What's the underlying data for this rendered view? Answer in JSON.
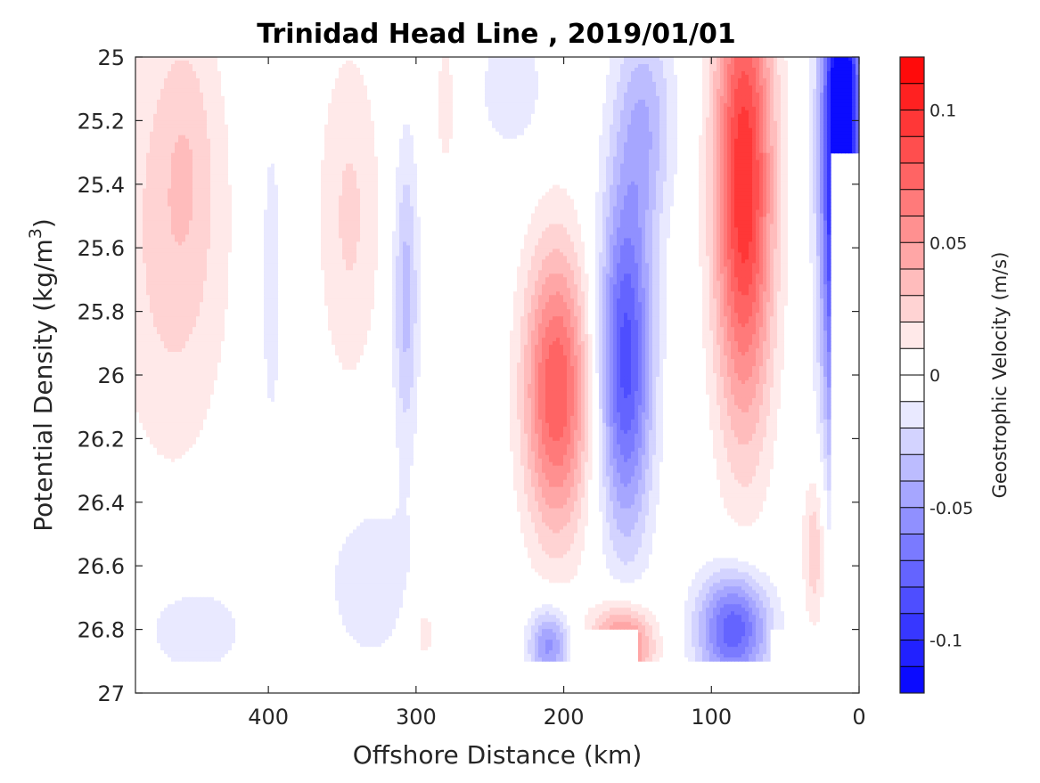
{
  "chart_data": {
    "type": "heatmap",
    "subtype": "filled-contour",
    "title": "Trinidad Head Line , 2019/01/01",
    "xlabel": "Offshore Distance (km)",
    "ylabel_main": "Potential Density (kg/m",
    "ylabel_sup": "3",
    "ylabel_close": ")",
    "xlim": [
      490,
      0
    ],
    "x_reversed": true,
    "ylim": [
      25,
      27
    ],
    "y_reversed": true,
    "x_ticks": [
      400,
      300,
      200,
      100,
      0
    ],
    "x_tick_labels": [
      "400",
      "300",
      "200",
      "100",
      "0"
    ],
    "y_ticks": [
      25,
      25.2,
      25.4,
      25.6,
      25.8,
      26,
      26.2,
      26.4,
      26.6,
      26.8,
      27
    ],
    "y_tick_labels": [
      "25",
      "25.2",
      "25.4",
      "25.6",
      "25.8",
      "26",
      "26.2",
      "26.4",
      "26.6",
      "26.8",
      "27"
    ],
    "colorbar": {
      "label": "Geostrophic Velocity (m/s)",
      "range": [
        -0.12,
        0.12
      ],
      "step": 0.01,
      "ticks": [
        0.1,
        0.05,
        0,
        -0.05,
        -0.1
      ],
      "tick_labels": [
        "0.1",
        "0.05",
        "0",
        "-0.05",
        "-0.1"
      ],
      "negative_color": "#0000ff",
      "zero_color": "#ffffff",
      "positive_color": "#ff0000"
    },
    "data_extent": {
      "x_max": 490,
      "y_max": 26.9
    },
    "masked_regions": [
      {
        "x_from": 190,
        "x_to": 150,
        "y_from": 26.8,
        "y_to": 26.9
      },
      {
        "x_from": 60,
        "x_to": 0,
        "y_from": 26.8,
        "y_to": 26.9
      },
      {
        "x_from": 20,
        "x_to": 0,
        "y_from": 25.3,
        "y_to": 26.8
      }
    ],
    "features": [
      {
        "name": "offshore weak positive",
        "x": 465,
        "y": 25.55,
        "sx": 40,
        "sy": 0.75,
        "value": 0.025
      },
      {
        "name": "offshore positive core",
        "x": 455,
        "y": 25.3,
        "sx": 18,
        "sy": 0.4,
        "value": 0.01
      },
      {
        "name": "weak negative band 400km",
        "x": 398,
        "y": 25.7,
        "sx": 8,
        "sy": 0.55,
        "value": -0.018
      },
      {
        "name": "weak positive 345km",
        "x": 345,
        "y": 25.5,
        "sx": 22,
        "sy": 0.55,
        "value": 0.022
      },
      {
        "name": "negative band 305km",
        "x": 307,
        "y": 25.75,
        "sx": 9,
        "sy": 0.5,
        "value": -0.035
      },
      {
        "name": "weak positive 280km",
        "x": 280,
        "y": 25.15,
        "sx": 8,
        "sy": 0.25,
        "value": 0.015
      },
      {
        "name": "weak negative 235km",
        "x": 235,
        "y": 25.1,
        "sx": 22,
        "sy": 0.2,
        "value": -0.02
      },
      {
        "name": "positive core 205km",
        "x": 205,
        "y": 26.05,
        "sx": 22,
        "sy": 0.45,
        "value": 0.08
      },
      {
        "name": "negative core 158km",
        "x": 158,
        "y": 25.95,
        "sx": 18,
        "sy": 0.55,
        "value": -0.085
      },
      {
        "name": "negative upper 145km",
        "x": 145,
        "y": 25.2,
        "sx": 20,
        "sy": 0.35,
        "value": -0.035
      },
      {
        "name": "positive core 78km",
        "x": 78,
        "y": 25.4,
        "sx": 20,
        "sy": 0.75,
        "value": 0.1
      },
      {
        "name": "strong negative coastal",
        "x": 12,
        "y": 25.3,
        "sx": 13,
        "sy": 0.9,
        "value": -0.15
      },
      {
        "name": "negative bottom 210km",
        "x": 210,
        "y": 26.85,
        "sx": 14,
        "sy": 0.12,
        "value": -0.055
      },
      {
        "name": "positive bottom 160km",
        "x": 160,
        "y": 26.85,
        "sx": 20,
        "sy": 0.13,
        "value": 0.07
      },
      {
        "name": "negative bottom 85km",
        "x": 85,
        "y": 26.8,
        "sx": 24,
        "sy": 0.18,
        "value": -0.08
      },
      {
        "name": "positive bottom 30km",
        "x": 30,
        "y": 26.55,
        "sx": 8,
        "sy": 0.25,
        "value": 0.03
      },
      {
        "name": "weak negative bottom offshore",
        "x": 450,
        "y": 26.8,
        "sx": 35,
        "sy": 0.15,
        "value": -0.02
      },
      {
        "name": "weak negative bottom 330km",
        "x": 330,
        "y": 26.65,
        "sx": 30,
        "sy": 0.25,
        "value": -0.02
      },
      {
        "name": "weak positive bottom 295km",
        "x": 295,
        "y": 26.8,
        "sx": 12,
        "sy": 0.15,
        "value": 0.015
      }
    ]
  }
}
